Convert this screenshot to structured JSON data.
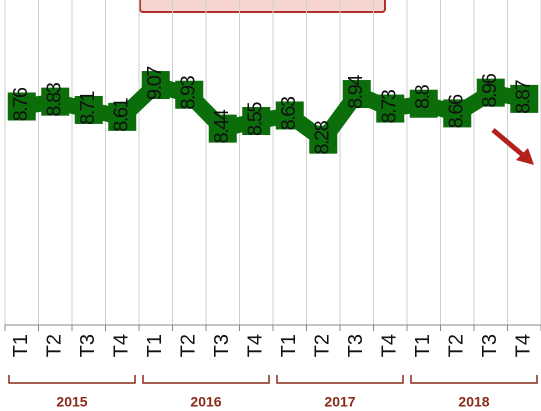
{
  "chart_data": {
    "type": "line",
    "categories": [
      "T1",
      "T2",
      "T3",
      "T4",
      "T1",
      "T2",
      "T3",
      "T4",
      "T1",
      "T2",
      "T3",
      "T4",
      "T1",
      "T2",
      "T3",
      "T4"
    ],
    "groups": [
      "2015",
      "2016",
      "2017",
      "2018"
    ],
    "values": [
      8.76,
      8.83,
      8.71,
      8.61,
      9.07,
      8.93,
      8.44,
      8.55,
      8.63,
      8.28,
      8.94,
      8.73,
      8.8,
      8.66,
      8.96,
      8.87
    ],
    "color": "#0b6e0b",
    "ylim": [
      5.6,
      10.3
    ],
    "grid": true
  }
}
